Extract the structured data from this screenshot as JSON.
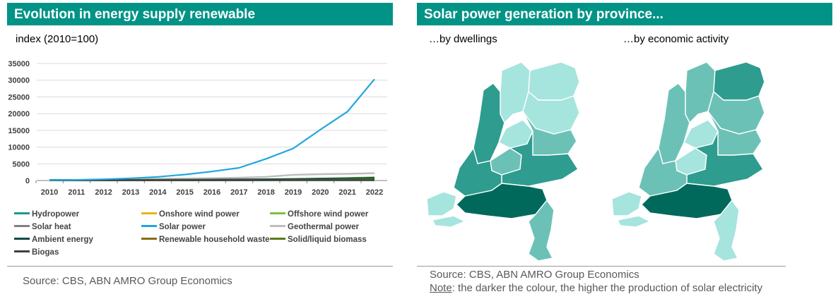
{
  "left_panel": {
    "title": "Evolution in energy supply renewable",
    "subtitle": "index (2010=100)",
    "source": "Source: CBS, ABN AMRO Group Economics"
  },
  "right_panel": {
    "title": "Solar power generation by province...",
    "map_left_label": "…by dwellings",
    "map_right_label": "…by economic activity",
    "source": "Source: CBS, ABN AMRO Group Economics",
    "note_label": "Note",
    "note_text": ": the darker the colour, the higher the production of solar electricity"
  },
  "colors": {
    "header_bg": "#009386",
    "shade_darkest": "#00695c",
    "shade_dark": "#2e9c8f",
    "shade_mid": "#6cc1b7",
    "shade_light": "#a6e4de"
  },
  "chart_data": {
    "type": "line",
    "title": "Evolution in energy supply renewable",
    "ylabel": "index (2010=100)",
    "xlabel": "",
    "x": [
      "2010",
      "2011",
      "2012",
      "2013",
      "2014",
      "2015",
      "2016",
      "2017",
      "2018",
      "2019",
      "2020",
      "2021",
      "2022"
    ],
    "ylim": [
      0,
      35000
    ],
    "yticks": [
      0,
      5000,
      10000,
      15000,
      20000,
      25000,
      30000,
      35000
    ],
    "grid": true,
    "legend_position": "bottom",
    "series": [
      {
        "name": "Hydropower",
        "color": "#1a9a8e",
        "values": [
          100,
          100,
          100,
          100,
          95,
          90,
          90,
          95,
          95,
          100,
          95,
          95,
          100
        ]
      },
      {
        "name": "Onshore wind power",
        "color": "#e8b614",
        "values": [
          100,
          110,
          120,
          125,
          135,
          165,
          175,
          185,
          190,
          215,
          265,
          300,
          330
        ]
      },
      {
        "name": "Offshore wind power",
        "color": "#7ac143",
        "values": [
          100,
          105,
          95,
          100,
          150,
          170,
          190,
          210,
          250,
          330,
          560,
          750,
          950
        ]
      },
      {
        "name": "Solar heat",
        "color": "#808080",
        "values": [
          100,
          105,
          110,
          115,
          120,
          125,
          130,
          135,
          140,
          145,
          150,
          155,
          160
        ]
      },
      {
        "name": "Solar power",
        "color": "#1fa7e0",
        "values": [
          100,
          180,
          380,
          650,
          1100,
          1800,
          2700,
          3800,
          6500,
          9600,
          15200,
          20600,
          30300
        ]
      },
      {
        "name": "Geothermal power",
        "color": "#bdbdbd",
        "values": [
          100,
          180,
          280,
          420,
          520,
          600,
          700,
          850,
          1100,
          1700,
          1900,
          2000,
          2200
        ]
      },
      {
        "name": "Ambient energy",
        "color": "#0d4a44",
        "values": [
          100,
          120,
          140,
          170,
          200,
          240,
          280,
          330,
          390,
          470,
          560,
          660,
          780
        ]
      },
      {
        "name": "Renewable household waste",
        "color": "#8a6a0c",
        "values": [
          100,
          102,
          104,
          106,
          108,
          110,
          110,
          112,
          114,
          116,
          118,
          120,
          122
        ]
      },
      {
        "name": "Solid/liquid biomass",
        "color": "#557a1e",
        "values": [
          100,
          105,
          110,
          115,
          120,
          130,
          135,
          150,
          170,
          210,
          260,
          320,
          380
        ]
      },
      {
        "name": "Biogas",
        "color": "#404040",
        "values": [
          100,
          102,
          104,
          106,
          108,
          110,
          112,
          114,
          116,
          118,
          120,
          122,
          124
        ]
      }
    ]
  },
  "maps": [
    {
      "name": "by dwellings",
      "provinces": {
        "Groningen": "light",
        "Friesland": "light",
        "Drenthe": "light",
        "Overijssel": "mid",
        "Gelderland": "dark",
        "Flevoland": "light",
        "Noord-Holland": "dark",
        "Utrecht": "mid",
        "Zuid-Holland": "dark",
        "Zeeland": "light",
        "Noord-Brabant": "darkest",
        "Limburg": "mid"
      }
    },
    {
      "name": "by economic activity",
      "provinces": {
        "Groningen": "dark",
        "Friesland": "mid",
        "Drenthe": "mid",
        "Overijssel": "mid",
        "Gelderland": "dark",
        "Flevoland": "light",
        "Noord-Holland": "mid",
        "Utrecht": "light",
        "Zuid-Holland": "mid",
        "Zeeland": "light",
        "Noord-Brabant": "darkest",
        "Limburg": "light"
      }
    }
  ]
}
